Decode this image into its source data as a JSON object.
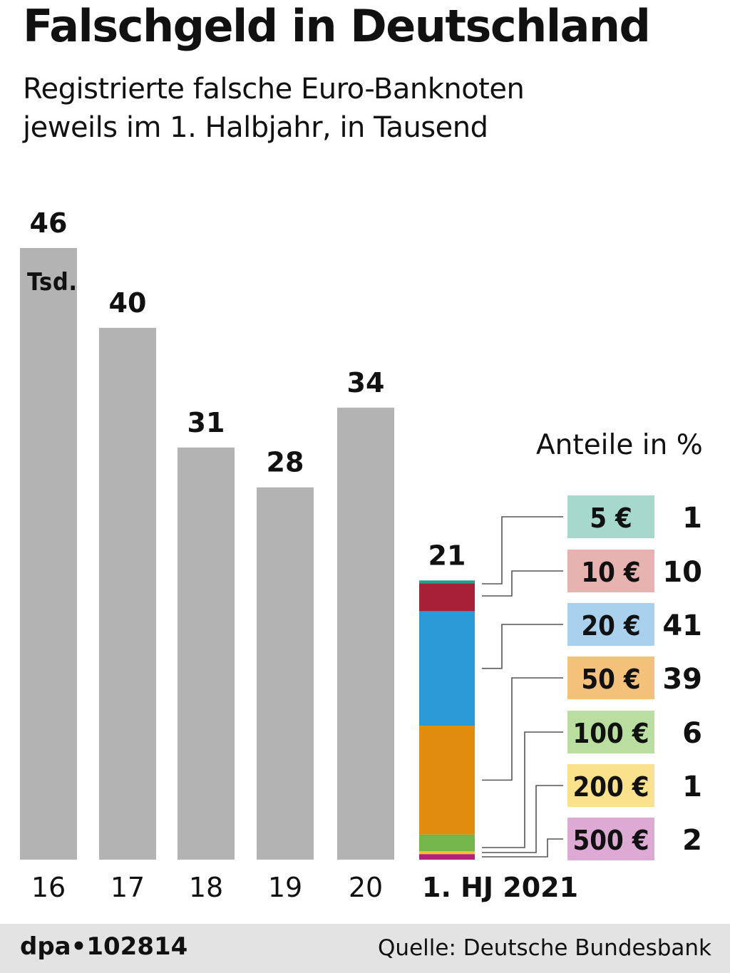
{
  "header": {
    "title": "Falschgeld in Deutschland",
    "subtitle_line1": "Registrierte falsche Euro-Banknoten",
    "subtitle_line2": "jeweils im 1. Halbjahr, in Tausend"
  },
  "chart_data": {
    "type": "bar",
    "title": "Falschgeld in Deutschland",
    "subtitle": "Registrierte falsche Euro-Banknoten jeweils im 1. Halbjahr, in Tausend",
    "categories": [
      "16",
      "17",
      "18",
      "19",
      "20",
      "1. HJ 2021"
    ],
    "values": [
      46,
      40,
      31,
      28,
      34,
      21
    ],
    "value_labels": [
      "46",
      "40",
      "31",
      "28",
      "34",
      "21"
    ],
    "unit_label": "Tsd.",
    "ylim": [
      0,
      46
    ],
    "grid": false,
    "bar_color": "#b3b3b3",
    "breakdown": {
      "category": "1. HJ 2021",
      "title": "Anteile in %",
      "segments": [
        {
          "label": "5 €",
          "value": 1,
          "color": "#1f9e8c",
          "chip_color": "#a7d8cc"
        },
        {
          "label": "10 €",
          "value": 10,
          "color": "#a82038",
          "chip_color": "#e6b3b0"
        },
        {
          "label": "20 €",
          "value": 41,
          "color": "#2b9ad6",
          "chip_color": "#a9d1ee"
        },
        {
          "label": "50 €",
          "value": 39,
          "color": "#e08c0c",
          "chip_color": "#f3c17a"
        },
        {
          "label": "100 €",
          "value": 6,
          "color": "#74b64a",
          "chip_color": "#b9dea0"
        },
        {
          "label": "200 €",
          "value": 1,
          "color": "#f2c230",
          "chip_color": "#fae18b"
        },
        {
          "label": "500 €",
          "value": 2,
          "color": "#b0237a",
          "chip_color": "#dcaad2"
        }
      ]
    }
  },
  "footer": {
    "credit": "dpa•102814",
    "source": "Quelle: Deutsche Bundesbank"
  }
}
